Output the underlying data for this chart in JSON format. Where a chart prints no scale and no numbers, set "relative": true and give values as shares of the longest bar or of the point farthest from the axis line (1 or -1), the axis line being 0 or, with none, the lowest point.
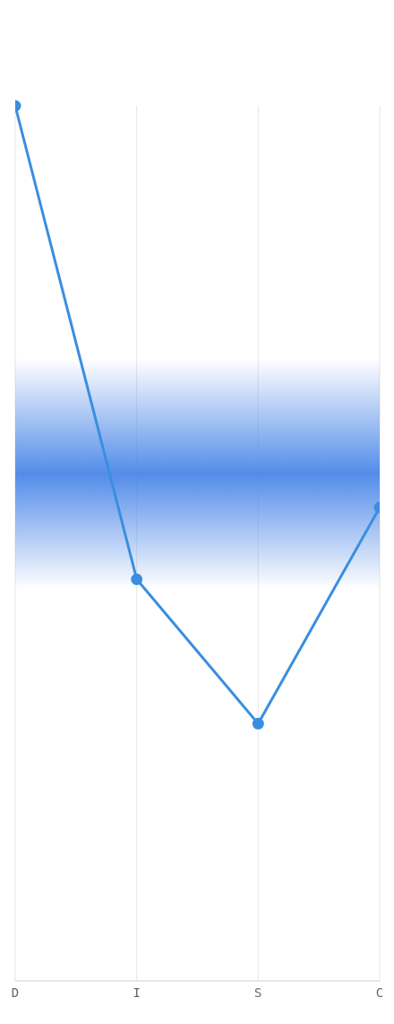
{
  "chart_data": {
    "type": "line",
    "relative": true,
    "categories": [
      "D",
      "I",
      "S",
      "C"
    ],
    "series": [
      {
        "color": "#3a8ee0",
        "values": [
          1,
          0.459,
          0.294,
          0.541
        ]
      }
    ],
    "bands": [
      {
        "axis": "y",
        "from": 0.448,
        "to": 0.711,
        "color": "#4a86e8"
      }
    ],
    "grid": "x",
    "marker": "circle",
    "line_style": "solid"
  }
}
